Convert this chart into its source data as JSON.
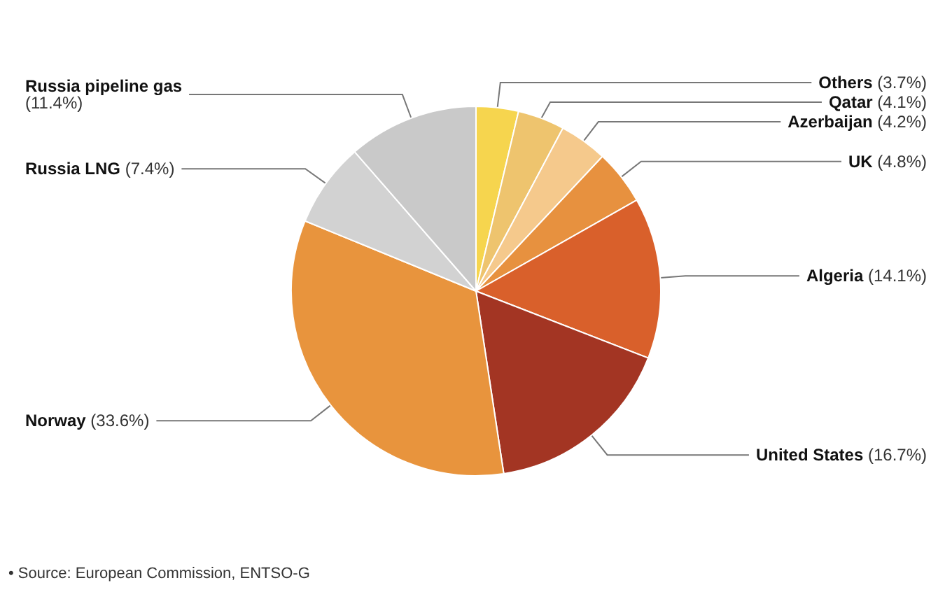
{
  "chart_data": {
    "type": "pie",
    "categories": [
      "Others",
      "Qatar",
      "Azerbaijan",
      "UK",
      "Algeria",
      "United States",
      "Norway",
      "Russia LNG",
      "Russia pipeline gas"
    ],
    "values": [
      3.7,
      4.1,
      4.2,
      4.8,
      14.1,
      16.7,
      33.6,
      7.4,
      11.4
    ],
    "colors": [
      "#f6d54e",
      "#eec46e",
      "#f5c98c",
      "#e7913f",
      "#d9602b",
      "#a33523",
      "#e8943d",
      "#d2d2d2",
      "#c9c9c9"
    ],
    "value_labels": [
      "(3.7%)",
      "(4.1%)",
      "(4.2%)",
      "(4.8%)",
      "(14.1%)",
      "(16.7%)",
      "(33.6%)",
      "(7.4%)",
      "(11.4%)"
    ],
    "annotations": [
      "• Source: European Commission, ENTSO-G"
    ]
  }
}
